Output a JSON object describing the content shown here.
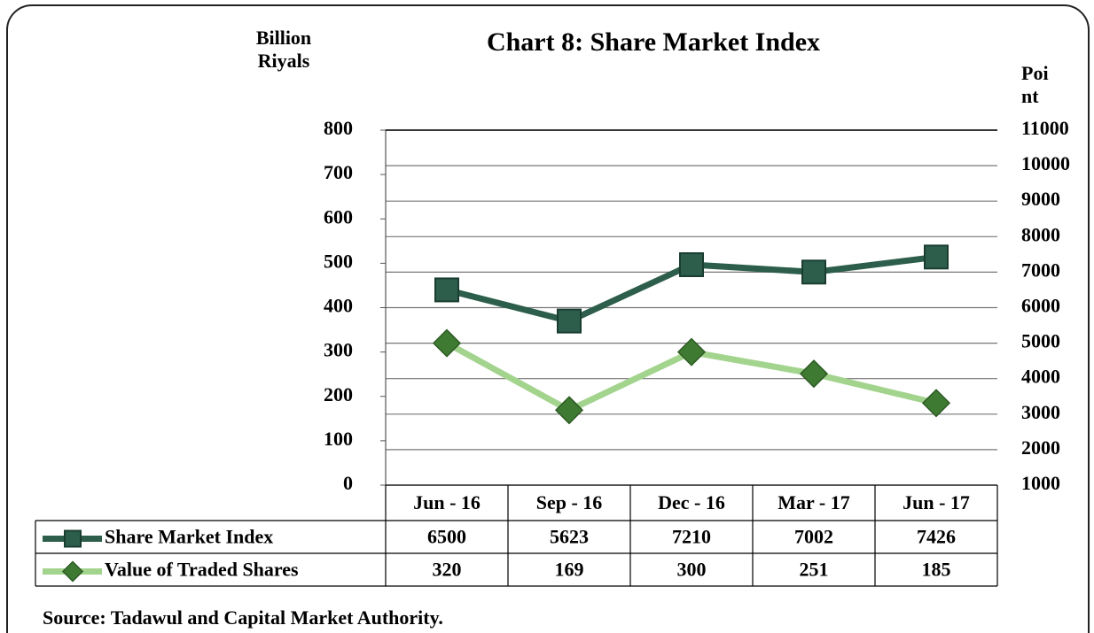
{
  "chart_data": {
    "type": "line",
    "title": "Chart 8: Share Market Index",
    "y_label": "Billion Riyals",
    "y2_label": "Point",
    "categories": [
      "Jun - 16",
      "Sep - 16",
      "Dec - 16",
      "Mar - 17",
      "Jun - 17"
    ],
    "series": [
      {
        "name": "Share Market Index",
        "color": "#2d5e4c",
        "axis": "y2",
        "marker": "square",
        "values": [
          6500,
          5623,
          7210,
          7002,
          7426
        ]
      },
      {
        "name": "Value of Traded Shares",
        "color": "#a3d48e",
        "axis": "y",
        "marker": "diamond",
        "values": [
          320,
          169,
          300,
          251,
          185
        ]
      }
    ],
    "ylim": [
      0,
      800
    ],
    "yticks": [
      0,
      100,
      200,
      300,
      400,
      500,
      600,
      700,
      800
    ],
    "y2lim": [
      1000,
      11000
    ],
    "y2ticks": [
      1000,
      2000,
      3000,
      4000,
      5000,
      6000,
      7000,
      8000,
      9000,
      10000,
      11000
    ],
    "grid": true,
    "source": "Source: Tadawul  and Capital Market Authority."
  }
}
